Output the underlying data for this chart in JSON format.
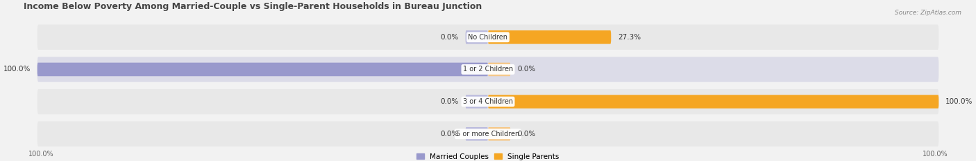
{
  "title": "Income Below Poverty Among Married-Couple vs Single-Parent Households in Bureau Junction",
  "source": "Source: ZipAtlas.com",
  "categories": [
    "No Children",
    "1 or 2 Children",
    "3 or 4 Children",
    "5 or more Children"
  ],
  "married_values": [
    0.0,
    100.0,
    0.0,
    0.0
  ],
  "single_values": [
    27.3,
    0.0,
    100.0,
    0.0
  ],
  "married_color": "#9999cc",
  "married_stub_color": "#bbbbdd",
  "single_color": "#f5a623",
  "single_stub_color": "#f5c88a",
  "bg_color": "#f2f2f2",
  "row_bg_even": "#e8e8e8",
  "row_bg_odd": "#dcdce8",
  "max_value": 100.0,
  "title_fontsize": 9,
  "label_fontsize": 7.5,
  "tick_fontsize": 7,
  "figsize": [
    14.06,
    2.33
  ],
  "dpi": 100,
  "stub_size": 5.0
}
